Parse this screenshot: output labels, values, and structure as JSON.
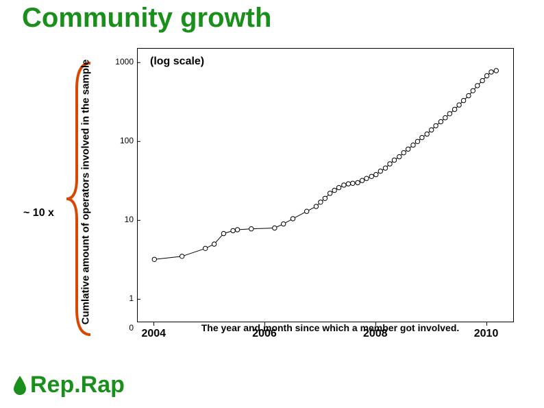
{
  "title": {
    "text": "Community growth",
    "color": "#1b8f1b",
    "fontsize": 40
  },
  "annotations": {
    "ten_x": "~ 10 x",
    "log_scale": "(log scale)"
  },
  "brace": {
    "color": "#d94800"
  },
  "chart": {
    "type": "line",
    "y_axis_title": "Cumlative amount of operators involved in the sample",
    "x_axis_title": "The year and month since which a member got involved.",
    "yscale": "log",
    "ylim": [
      0.5,
      1500
    ],
    "y_ticks": [
      0,
      1,
      10,
      100,
      1000
    ],
    "xlim": [
      2003.7,
      2010.5
    ],
    "x_ticks": [
      2004,
      2006,
      2008,
      2010
    ],
    "background_color": "#ffffff",
    "border_color": "#000000",
    "line_color": "#000000",
    "marker": {
      "shape": "circle",
      "size": 3.2,
      "fill": "#ffffff",
      "stroke": "#000000",
      "stroke_width": 1
    },
    "line_width": 1,
    "data": [
      [
        2004.0,
        3.2
      ],
      [
        2004.5,
        3.5
      ],
      [
        2004.92,
        4.4
      ],
      [
        2005.08,
        5.0
      ],
      [
        2005.25,
        6.8
      ],
      [
        2005.42,
        7.4
      ],
      [
        2005.5,
        7.6
      ],
      [
        2005.75,
        7.8
      ],
      [
        2006.17,
        8.0
      ],
      [
        2006.33,
        9.0
      ],
      [
        2006.5,
        10.5
      ],
      [
        2006.75,
        13.0
      ],
      [
        2006.92,
        15.0
      ],
      [
        2007.0,
        17.0
      ],
      [
        2007.08,
        19.0
      ],
      [
        2007.17,
        22.0
      ],
      [
        2007.25,
        24.0
      ],
      [
        2007.33,
        26.0
      ],
      [
        2007.42,
        28.0
      ],
      [
        2007.5,
        29.0
      ],
      [
        2007.58,
        29.5
      ],
      [
        2007.67,
        30.0
      ],
      [
        2007.75,
        32.0
      ],
      [
        2007.83,
        34.0
      ],
      [
        2007.92,
        36.0
      ],
      [
        2008.0,
        38.0
      ],
      [
        2008.08,
        42.0
      ],
      [
        2008.17,
        46.0
      ],
      [
        2008.25,
        52.0
      ],
      [
        2008.33,
        58.0
      ],
      [
        2008.42,
        64.0
      ],
      [
        2008.5,
        72.0
      ],
      [
        2008.58,
        80.0
      ],
      [
        2008.67,
        90.0
      ],
      [
        2008.75,
        100.0
      ],
      [
        2008.83,
        112.0
      ],
      [
        2008.92,
        124.0
      ],
      [
        2009.0,
        140.0
      ],
      [
        2009.08,
        158.0
      ],
      [
        2009.17,
        178.0
      ],
      [
        2009.25,
        200.0
      ],
      [
        2009.33,
        225.0
      ],
      [
        2009.42,
        255.0
      ],
      [
        2009.5,
        290.0
      ],
      [
        2009.58,
        330.0
      ],
      [
        2009.67,
        380.0
      ],
      [
        2009.75,
        440.0
      ],
      [
        2009.83,
        510.0
      ],
      [
        2009.92,
        590.0
      ],
      [
        2010.0,
        680.0
      ],
      [
        2010.08,
        760.0
      ],
      [
        2010.17,
        790.0
      ]
    ]
  },
  "logo": {
    "text": "Rep.Rap",
    "color": "#1b8f1b",
    "teardrop_color": "#1b8f1b"
  }
}
